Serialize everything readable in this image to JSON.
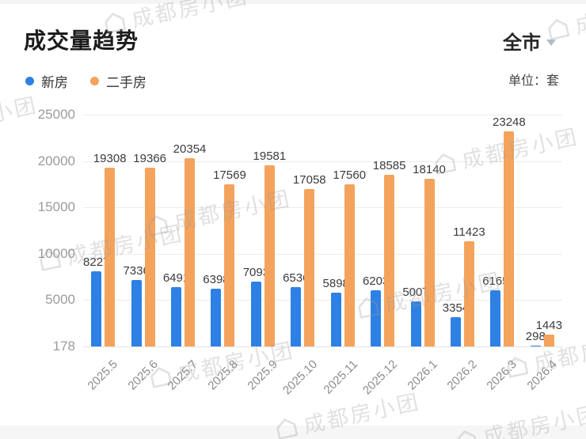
{
  "header": {
    "title": "成交量趋势",
    "region": "全市",
    "unit_label": "单位：套"
  },
  "legend": [
    {
      "label": "新房",
      "color": "#2d80e4"
    },
    {
      "label": "二手房",
      "color": "#f4a35c"
    }
  ],
  "watermark": {
    "text": "成都房小团"
  },
  "chart_data": {
    "type": "bar",
    "title": "成交量趋势",
    "unit": "套",
    "categories": [
      "2025.5",
      "2025.6",
      "2025.7",
      "2025.8",
      "2025.9",
      "2025.10",
      "2025.11",
      "2025.12",
      "2026.1",
      "2026.2",
      "2026.3",
      "2026.4"
    ],
    "series": [
      {
        "name": "新房",
        "color": "#2d80e4",
        "values": [
          8227,
          7336,
          6491,
          6398,
          7093,
          6536,
          5898,
          6203,
          5007,
          3354,
          6165,
          298
        ]
      },
      {
        "name": "二手房",
        "color": "#f4a35c",
        "values": [
          19308,
          19366,
          20354,
          17569,
          19581,
          17058,
          17560,
          18585,
          18140,
          11423,
          23248,
          1443
        ]
      }
    ],
    "y_ticks": [
      "25000",
      "20000",
      "15000",
      "10000",
      "5000",
      "178"
    ],
    "ylim": [
      178,
      25000
    ],
    "grid": true,
    "value_labels": true,
    "legend_position": "top-left"
  }
}
